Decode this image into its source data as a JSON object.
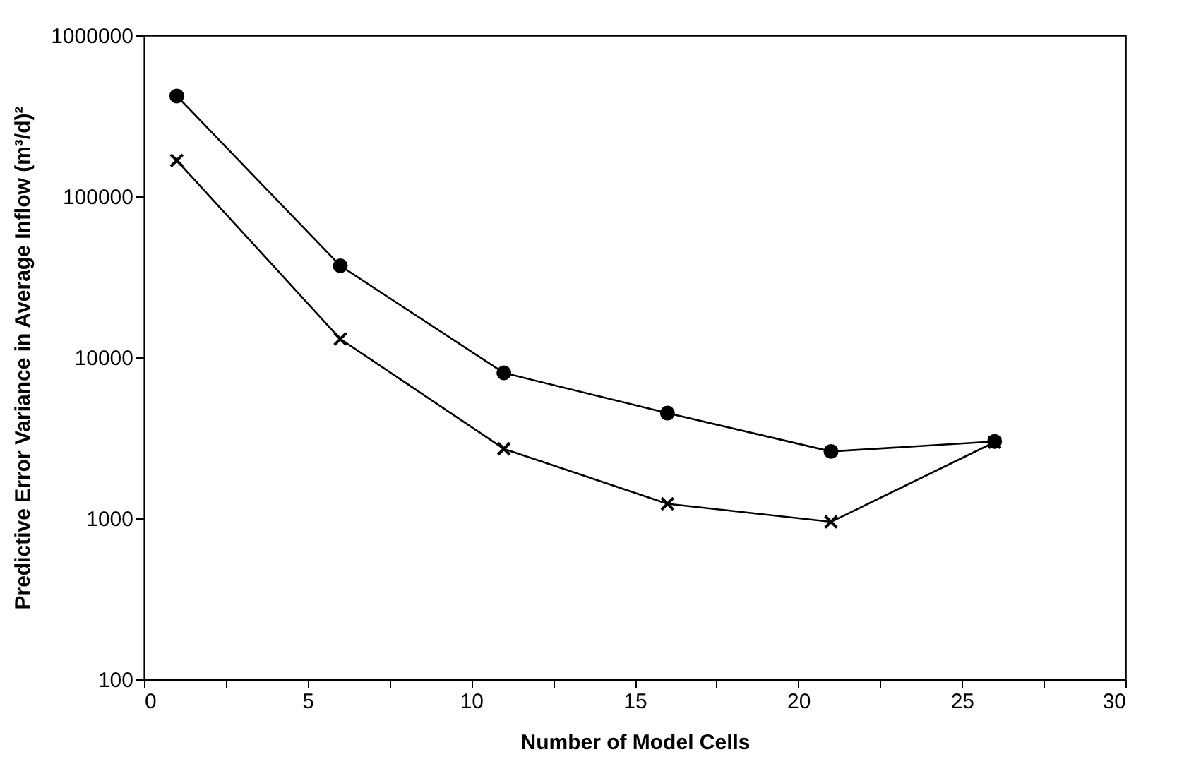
{
  "chart_data": {
    "type": "line",
    "xlabel": "Number of Model Cells",
    "ylabel": "Predictive Error Variance in Average Inflow (m³/d)²",
    "x": [
      1,
      6,
      11,
      16,
      21,
      26
    ],
    "series": [
      {
        "color": "#000000",
        "marker": "circle",
        "values": [
          420000,
          37000,
          8000,
          4500,
          2600,
          3000
        ]
      },
      {
        "color": "#000000",
        "marker": "cross",
        "values": [
          167000,
          13000,
          2700,
          1230,
          950,
          2970
        ]
      }
    ],
    "xlim": [
      0,
      30
    ],
    "xticks": [
      0,
      {
        "value": 2.5,
        "label": null
      },
      5,
      {
        "value": 7.5,
        "label": null
      },
      10,
      {
        "value": 12.5,
        "label": null
      },
      15,
      {
        "value": 17.5,
        "label": null
      },
      20,
      {
        "value": 22.5,
        "label": null
      },
      25,
      {
        "value": 27.5,
        "label": null
      },
      30
    ],
    "ylim": [
      100,
      1000000
    ],
    "yticks": [
      100,
      1000,
      10000,
      100000,
      1000000
    ],
    "log": "y",
    "line_style": "solid"
  }
}
